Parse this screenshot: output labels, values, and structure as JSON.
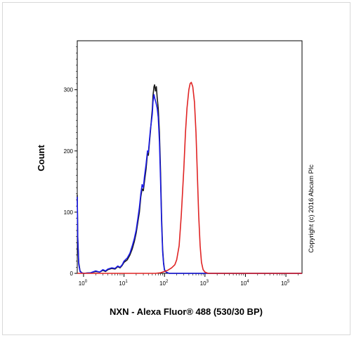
{
  "chart_data": {
    "type": "line",
    "title": "",
    "xlabel": "NXN - Alexa Fluor® 488 (530/30 BP)",
    "ylabel": "Count",
    "x_scale": "log",
    "xlim": [
      0.7,
      250000
    ],
    "ylim": [
      0,
      380
    ],
    "yticks": [
      0,
      100,
      200,
      300
    ],
    "xtick_labels": [
      {
        "value": 1,
        "base": "10",
        "exp": "0"
      },
      {
        "value": 10,
        "base": "10",
        "exp": "1"
      },
      {
        "value": 100,
        "base": "10",
        "exp": "2"
      },
      {
        "value": 1000,
        "base": "10",
        "exp": "3"
      },
      {
        "value": 10000,
        "base": "10",
        "exp": "4"
      },
      {
        "value": 100000,
        "base": "10",
        "exp": "5"
      }
    ],
    "series": [
      {
        "color": "#1c1c1c",
        "points": [
          [
            0.7,
            128
          ],
          [
            0.72,
            60
          ],
          [
            0.76,
            18
          ],
          [
            0.82,
            4
          ],
          [
            0.9,
            1
          ],
          [
            1,
            0
          ],
          [
            1.5,
            1
          ],
          [
            2,
            3
          ],
          [
            2.5,
            2
          ],
          [
            3,
            5
          ],
          [
            3.5,
            3
          ],
          [
            4,
            6
          ],
          [
            5,
            8
          ],
          [
            6,
            7
          ],
          [
            7,
            11
          ],
          [
            8,
            9
          ],
          [
            9,
            13
          ],
          [
            10,
            18
          ],
          [
            12,
            22
          ],
          [
            14,
            30
          ],
          [
            16,
            40
          ],
          [
            18,
            52
          ],
          [
            20,
            66
          ],
          [
            22,
            84
          ],
          [
            24,
            100
          ],
          [
            26,
            125
          ],
          [
            28,
            138
          ],
          [
            30,
            135
          ],
          [
            32,
            150
          ],
          [
            35,
            170
          ],
          [
            38,
            196
          ],
          [
            40,
            193
          ],
          [
            42,
            210
          ],
          [
            45,
            232
          ],
          [
            48,
            255
          ],
          [
            50,
            268
          ],
          [
            52,
            290
          ],
          [
            55,
            305
          ],
          [
            57,
            308
          ],
          [
            60,
            298
          ],
          [
            63,
            305
          ],
          [
            66,
            287
          ],
          [
            70,
            270
          ],
          [
            75,
            230
          ],
          [
            80,
            165
          ],
          [
            85,
            90
          ],
          [
            90,
            40
          ],
          [
            95,
            18
          ],
          [
            100,
            6
          ],
          [
            110,
            2
          ],
          [
            130,
            0
          ],
          [
            250000,
            0
          ]
        ]
      },
      {
        "color": "#1a1ae6",
        "points": [
          [
            0.7,
            125
          ],
          [
            0.72,
            55
          ],
          [
            0.76,
            15
          ],
          [
            0.82,
            3
          ],
          [
            0.9,
            1
          ],
          [
            1,
            0
          ],
          [
            1.5,
            1
          ],
          [
            2,
            4
          ],
          [
            2.5,
            2
          ],
          [
            3,
            6
          ],
          [
            3.5,
            4
          ],
          [
            4,
            7
          ],
          [
            5,
            9
          ],
          [
            6,
            8
          ],
          [
            7,
            12
          ],
          [
            8,
            10
          ],
          [
            9,
            14
          ],
          [
            10,
            20
          ],
          [
            12,
            25
          ],
          [
            14,
            33
          ],
          [
            16,
            45
          ],
          [
            18,
            57
          ],
          [
            20,
            71
          ],
          [
            22,
            90
          ],
          [
            24,
            108
          ],
          [
            26,
            130
          ],
          [
            28,
            145
          ],
          [
            30,
            140
          ],
          [
            32,
            158
          ],
          [
            35,
            178
          ],
          [
            38,
            200
          ],
          [
            40,
            198
          ],
          [
            42,
            214
          ],
          [
            45,
            236
          ],
          [
            48,
            250
          ],
          [
            50,
            260
          ],
          [
            52,
            280
          ],
          [
            55,
            292
          ],
          [
            58,
            285
          ],
          [
            62,
            278
          ],
          [
            66,
            270
          ],
          [
            70,
            255
          ],
          [
            75,
            215
          ],
          [
            80,
            150
          ],
          [
            85,
            80
          ],
          [
            90,
            35
          ],
          [
            95,
            15
          ],
          [
            100,
            5
          ],
          [
            110,
            2
          ],
          [
            130,
            0
          ],
          [
            250000,
            0
          ]
        ]
      },
      {
        "color": "#e02424",
        "points": [
          [
            0.7,
            0
          ],
          [
            60,
            0
          ],
          [
            80,
            1
          ],
          [
            100,
            3
          ],
          [
            120,
            5
          ],
          [
            150,
            9
          ],
          [
            180,
            14
          ],
          [
            200,
            22
          ],
          [
            230,
            45
          ],
          [
            260,
            95
          ],
          [
            300,
            170
          ],
          [
            330,
            230
          ],
          [
            360,
            270
          ],
          [
            400,
            300
          ],
          [
            430,
            310
          ],
          [
            460,
            312
          ],
          [
            500,
            305
          ],
          [
            550,
            280
          ],
          [
            600,
            230
          ],
          [
            650,
            160
          ],
          [
            700,
            95
          ],
          [
            760,
            45
          ],
          [
            820,
            18
          ],
          [
            900,
            6
          ],
          [
            1000,
            2
          ],
          [
            1200,
            0
          ],
          [
            250000,
            0
          ]
        ]
      }
    ]
  },
  "copyright": "Copyright (c) 2016 Abcam Plc"
}
